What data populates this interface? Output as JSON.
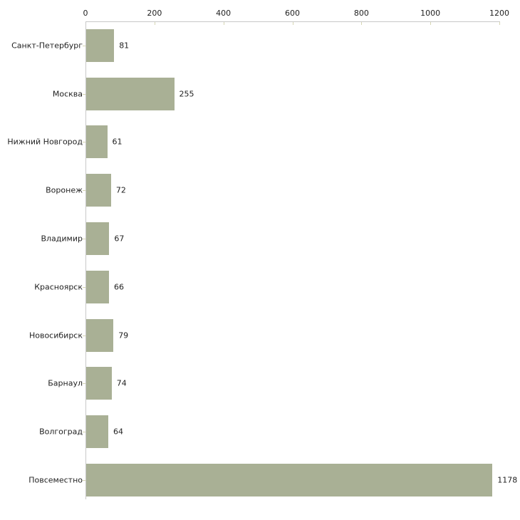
{
  "chart_data": {
    "type": "bar",
    "orientation": "horizontal",
    "categories": [
      "Санкт-Петербург",
      "Москва",
      "Нижний Новгород",
      "Воронеж",
      "Владимир",
      "Красноярск",
      "Новосибирск",
      "Барнаул",
      "Волгоград",
      "Повсеместно"
    ],
    "values": [
      81,
      255,
      61,
      72,
      67,
      66,
      79,
      74,
      64,
      1178
    ],
    "x_ticks": [
      0,
      200,
      400,
      600,
      800,
      1000,
      1200
    ],
    "xlim": [
      0,
      1200
    ],
    "grid": false,
    "value_labels_shown": true,
    "colors": {
      "bar": "#a9b095",
      "axis": "#c8c8c8",
      "tick": "#d6d6b4",
      "text": "#1f1f1f",
      "background": "#ffffff"
    }
  }
}
